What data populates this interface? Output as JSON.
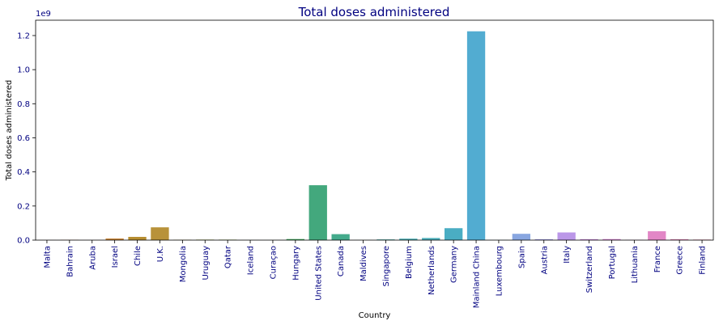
{
  "chart_data": {
    "type": "bar",
    "title": "Total doses administered",
    "xlabel": "Country",
    "ylabel": "Total doses administered",
    "offset_label": "1e9",
    "scale": 1000000000,
    "ylim": [
      0,
      1.29
    ],
    "yticks": [
      "0.0",
      "0.2",
      "0.4",
      "0.6",
      "0.8",
      "1.0",
      "1.2"
    ],
    "grid": false,
    "categories": [
      "Malta",
      "Bahrain",
      "Aruba",
      "Israel",
      "Chile",
      "U.K.",
      "Mongolia",
      "Uruguay",
      "Qatar",
      "Iceland",
      "Curaçao",
      "Hungary",
      "United States",
      "Canada",
      "Maldives",
      "Singapore",
      "Belgium",
      "Netherlands",
      "Germany",
      "Mainland China",
      "Luxembourg",
      "Spain",
      "Austria",
      "Italy",
      "Switzerland",
      "Portugal",
      "Lithuania",
      "France",
      "Greece",
      "Finland"
    ],
    "values": [
      0.0006,
      0.0014,
      0.0001,
      0.0095,
      0.019,
      0.075,
      0.0019,
      0.0028,
      0.0026,
      0.0003,
      0.0001,
      0.0062,
      0.322,
      0.035,
      0.0005,
      0.004,
      0.0085,
      0.0125,
      0.07,
      1.225,
      0.0007,
      0.037,
      0.0055,
      0.045,
      0.0055,
      0.0062,
      0.0015,
      0.052,
      0.0055,
      0.0032
    ],
    "colors": [
      "#e1706a",
      "#d57b3f",
      "#c5851e",
      "#c8853a",
      "#b78e31",
      "#b8923a",
      "#a09a32",
      "#93a132",
      "#7fa832",
      "#65ad41",
      "#4db046",
      "#3ea65c",
      "#43a87d",
      "#44ab8c",
      "#46ad99",
      "#47aba8",
      "#48acb2",
      "#4aaeba",
      "#4aadc3",
      "#52acd1",
      "#6badd5",
      "#88a6e0",
      "#a6a2e8",
      "#bb97e8",
      "#cd8de0",
      "#d886d6",
      "#e07dc8",
      "#e287c6",
      "#e48aba",
      "#e591ab"
    ]
  }
}
